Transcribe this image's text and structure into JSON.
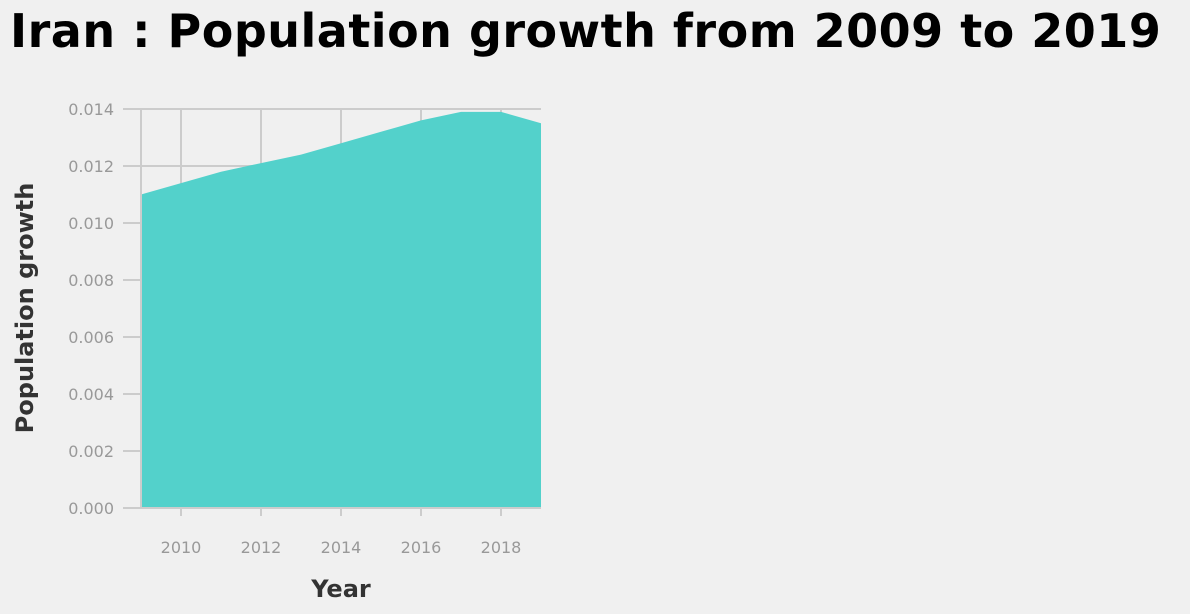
{
  "title": "Iran : Population growth from 2009 to 2019",
  "chart_data": {
    "type": "area",
    "title": "Iran : Population growth from 2009 to 2019",
    "xlabel": "Year",
    "ylabel": "Population growth",
    "x": [
      2009,
      2010,
      2011,
      2012,
      2013,
      2014,
      2015,
      2016,
      2017,
      2018,
      2019
    ],
    "values": [
      0.011,
      0.0114,
      0.0118,
      0.0121,
      0.0124,
      0.0128,
      0.0132,
      0.0136,
      0.0139,
      0.0139,
      0.0135
    ],
    "xlim": [
      2009,
      2019
    ],
    "ylim": [
      0,
      0.014
    ],
    "xticks": [
      "2010",
      "2012",
      "2014",
      "2016",
      "2018"
    ],
    "yticks": [
      "0.000",
      "0.002",
      "0.004",
      "0.006",
      "0.008",
      "0.010",
      "0.012",
      "0.014"
    ],
    "grid": true,
    "fill_color": "#53d1cb",
    "grid_color": "#cccccc",
    "background_color": "#f0f0f0"
  }
}
